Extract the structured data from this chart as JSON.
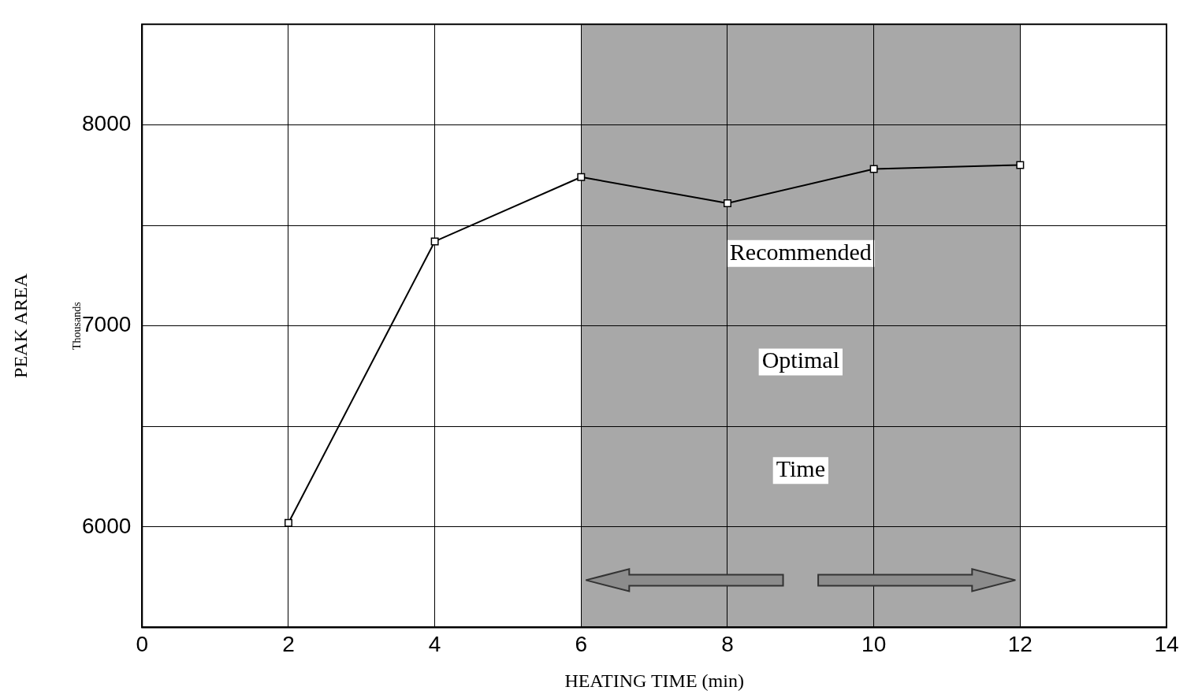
{
  "chart_data": {
    "type": "line",
    "xlabel": "HEATING TIME (min)",
    "ylabel": "PEAK AREA",
    "annotations": [
      "Thousands"
    ],
    "x": [
      2,
      4,
      6,
      8,
      10,
      12
    ],
    "series": [
      {
        "color": "#000000",
        "values": [
          6020,
          7420,
          7740,
          7610,
          7780,
          7800
        ]
      }
    ],
    "xlim": [
      0,
      14
    ],
    "xticks": [
      0,
      2,
      4,
      6,
      8,
      10,
      12,
      14
    ],
    "ylim": [
      5500,
      8500
    ],
    "yticks": [
      {
        "value": 5500,
        "label": null
      },
      6000,
      {
        "value": 6500,
        "label": null
      },
      7000,
      {
        "value": 7500,
        "label": null
      },
      8000,
      {
        "value": 8500,
        "label": null
      }
    ],
    "bands": [
      {
        "axis": "x",
        "from": 6,
        "to": 12,
        "label": "Recommended Optimal Time",
        "color": "#a8a8a8"
      }
    ],
    "grid": true,
    "legend": false,
    "marker": "square",
    "line_style": "solid"
  }
}
